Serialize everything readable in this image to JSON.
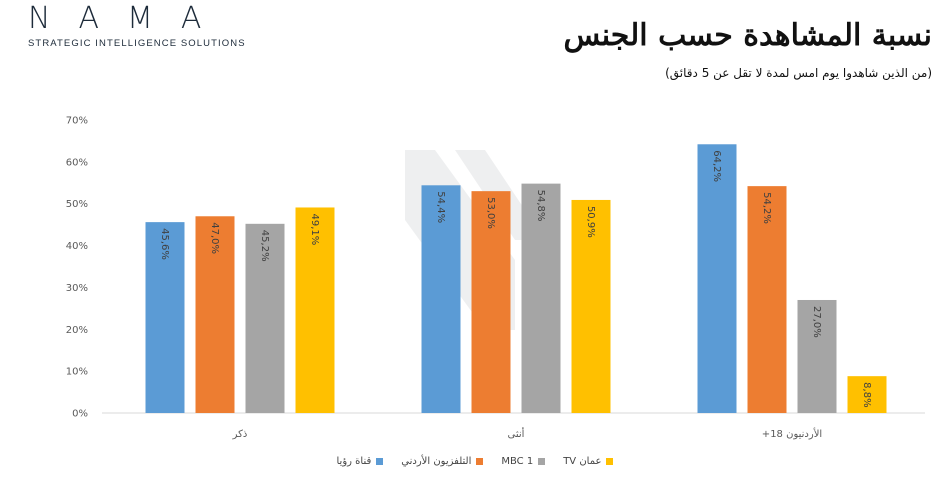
{
  "header": {
    "logo_word": "NAMA",
    "logo_tagline": "STRATEGIC INTELLIGENCE SOLUTIONS",
    "title": "نسبة المشاهدة حسب الجنس",
    "subtitle": "(من الذين شاهدوا يوم امس لمدة لا تقل عن 5 دقائق)"
  },
  "chart_data": {
    "type": "bar",
    "title": "نسبة المشاهدة حسب الجنس",
    "subtitle": "(من الذين شاهدوا يوم امس لمدة لا تقل عن 5 دقائق)",
    "categories": [
      "ذكر",
      "أنثى",
      "الأردنيون 18+"
    ],
    "series": [
      {
        "name": "قناة رؤيا",
        "color": "#5b9bd5",
        "values": [
          45.6,
          54.4,
          64.2
        ],
        "labels": [
          "45,6%",
          "54,4%",
          "64,2%"
        ]
      },
      {
        "name": "التلفزيون الأردني",
        "color": "#ed7d31",
        "values": [
          47.0,
          53.0,
          54.2
        ],
        "labels": [
          "47,0%",
          "53,0%",
          "54,2%"
        ]
      },
      {
        "name": "MBC 1",
        "color": "#a5a5a5",
        "values": [
          45.2,
          54.8,
          27.0
        ],
        "labels": [
          "45,2%",
          "54,8%",
          "27,0%"
        ]
      },
      {
        "name": "عمان TV",
        "color": "#ffc000",
        "values": [
          49.1,
          50.9,
          8.8
        ],
        "labels": [
          "49,1%",
          "50,9%",
          "8,8%"
        ]
      }
    ],
    "ylim": [
      0,
      70
    ],
    "y_ticks": [
      "0%",
      "10%",
      "20%",
      "30%",
      "40%",
      "50%",
      "60%",
      "70%"
    ],
    "grid": false,
    "legend_position": "bottom"
  }
}
